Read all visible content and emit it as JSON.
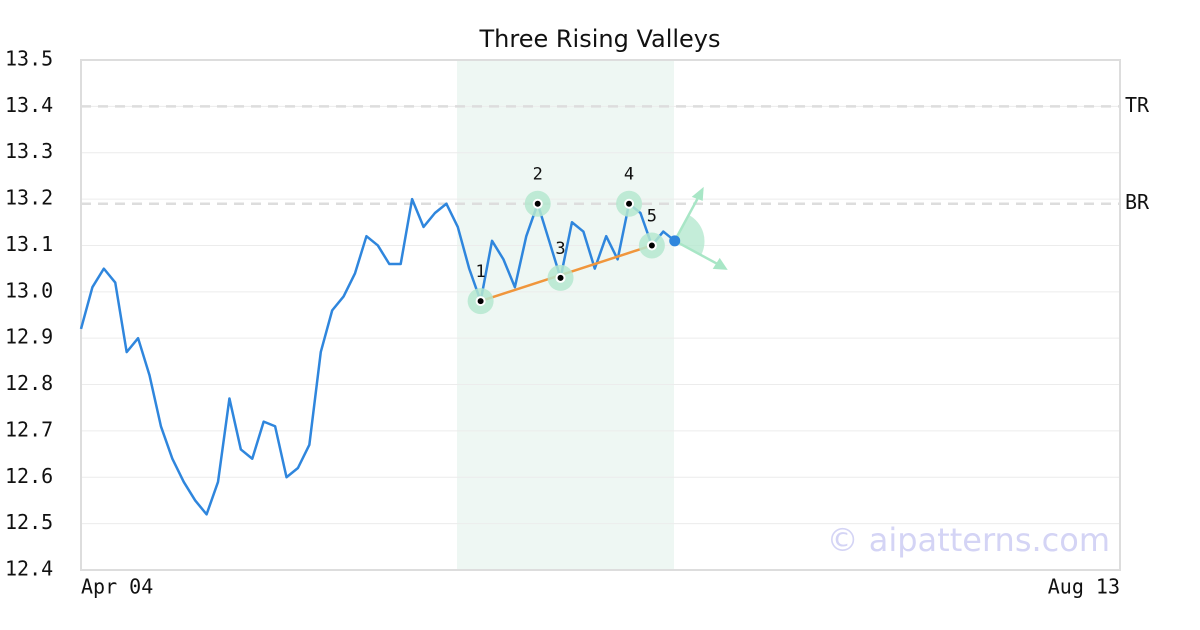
{
  "chart_data": {
    "type": "line",
    "title": "Three Rising Valleys",
    "categories": [
      "Apr 04",
      null,
      null,
      null,
      null,
      null,
      null,
      null,
      null,
      null,
      null,
      null,
      null,
      null,
      null,
      null,
      null,
      null,
      null,
      null,
      null,
      null,
      null,
      null,
      null,
      null,
      null,
      null,
      null,
      null,
      null,
      null,
      null,
      null,
      null,
      null,
      null,
      null,
      null,
      null,
      null,
      null,
      null,
      null,
      null,
      null,
      null,
      null,
      null,
      null,
      null,
      null,
      null,
      null,
      null,
      null,
      null,
      null,
      null,
      null,
      null,
      null,
      null,
      null,
      null,
      null,
      null,
      null,
      null,
      null,
      null,
      null,
      null,
      null,
      null,
      null,
      null,
      null,
      null,
      null,
      null,
      null,
      null,
      null,
      null,
      null,
      null,
      null,
      null,
      null,
      null,
      "Aug 13"
    ],
    "values": [
      12.92,
      13.01,
      13.05,
      13.02,
      12.87,
      12.9,
      12.82,
      12.71,
      12.64,
      12.59,
      12.55,
      12.52,
      12.59,
      12.77,
      12.66,
      12.64,
      12.72,
      12.71,
      12.6,
      12.62,
      12.67,
      12.87,
      12.96,
      12.99,
      13.04,
      13.12,
      13.1,
      13.06,
      13.06,
      13.2,
      13.14,
      13.17,
      13.19,
      13.14,
      13.05,
      12.98,
      13.11,
      13.07,
      13.01,
      13.12,
      13.19,
      13.11,
      13.03,
      13.15,
      13.13,
      13.05,
      13.12,
      13.07,
      13.19,
      13.17,
      13.1,
      13.13,
      13.11,
      null,
      null,
      null,
      null,
      null,
      null,
      null,
      null,
      null,
      null,
      null,
      null,
      null,
      null,
      null,
      null,
      null,
      null,
      null,
      null,
      null,
      null,
      null,
      null,
      null,
      null,
      null,
      null,
      null,
      null,
      null,
      null,
      null,
      null,
      null,
      null,
      null,
      null,
      null
    ],
    "color": "#2f86dd",
    "pattern": {
      "values": [
        null,
        null,
        null,
        null,
        null,
        null,
        null,
        null,
        null,
        null,
        null,
        null,
        null,
        null,
        null,
        null,
        null,
        null,
        null,
        null,
        null,
        null,
        null,
        null,
        null,
        null,
        null,
        null,
        null,
        null,
        null,
        null,
        null,
        null,
        null,
        12.98,
        null,
        null,
        null,
        null,
        13.19,
        null,
        13.03,
        null,
        null,
        null,
        null,
        null,
        13.19,
        null,
        13.1,
        null,
        null,
        null,
        null,
        null,
        null,
        null,
        null,
        null,
        null,
        null,
        null,
        null,
        null,
        null,
        null,
        null,
        null,
        null,
        null,
        null,
        null,
        null,
        null,
        null,
        null,
        null,
        null,
        null,
        null,
        null,
        null,
        null,
        null,
        null,
        null,
        null,
        null,
        null,
        null,
        null
      ],
      "labels": [
        null,
        null,
        null,
        null,
        null,
        null,
        null,
        null,
        null,
        null,
        null,
        null,
        null,
        null,
        null,
        null,
        null,
        null,
        null,
        null,
        null,
        null,
        null,
        null,
        null,
        null,
        null,
        null,
        null,
        null,
        null,
        null,
        null,
        null,
        null,
        "1",
        null,
        null,
        null,
        null,
        "2",
        null,
        "3",
        null,
        null,
        null,
        null,
        null,
        "4",
        null,
        "5",
        null,
        null,
        null,
        null,
        null,
        null,
        null,
        null,
        null,
        null,
        null,
        null,
        null,
        null,
        null,
        null,
        null,
        null,
        null,
        null,
        null,
        null,
        null,
        null,
        null,
        null,
        null,
        null,
        null,
        null,
        null,
        null,
        null,
        null,
        null,
        null,
        null,
        null,
        null,
        null,
        null
      ],
      "trend_color": "#f0963c"
    },
    "hlines": [
      {
        "value": 13.4,
        "label": "TR"
      },
      {
        "value": 13.19,
        "label": "BR"
      }
    ],
    "ylim": [
      12.4,
      13.5
    ],
    "yticks": [
      12.4,
      12.5,
      12.6,
      12.7,
      12.8,
      12.9,
      {
        "value": 13,
        "label": "13.0"
      },
      13.1,
      13.2,
      13.3,
      13.4,
      13.5
    ],
    "grid": true,
    "watermark": "© aipatterns.com"
  }
}
